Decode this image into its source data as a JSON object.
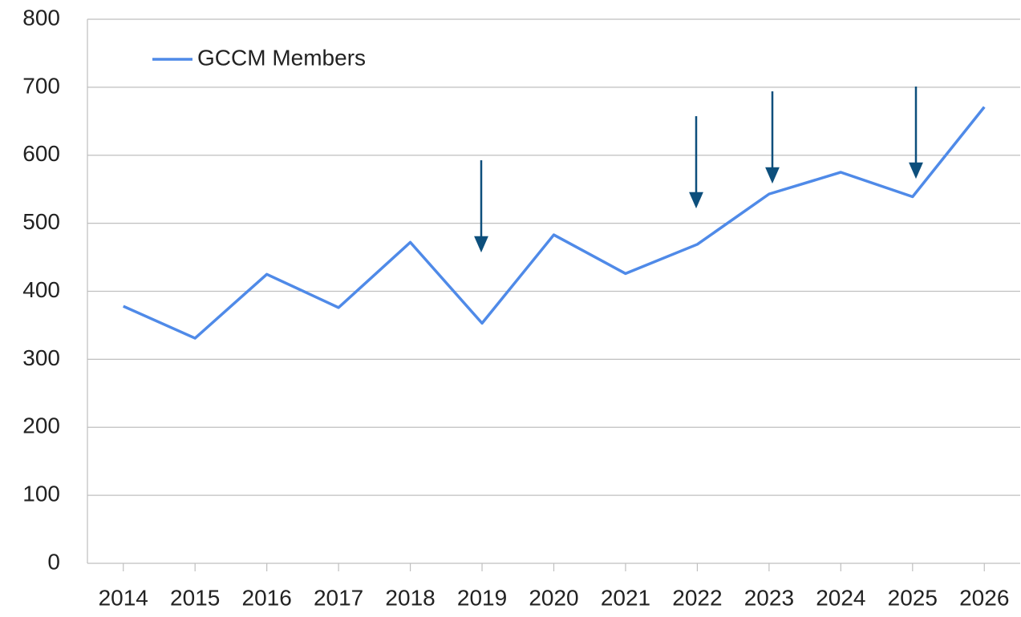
{
  "chart_data": {
    "type": "line",
    "categories": [
      "2014",
      "2015",
      "2016",
      "2017",
      "2018",
      "2019",
      "2020",
      "2021",
      "2022",
      "2023",
      "2024",
      "2025",
      "2026"
    ],
    "series": [
      {
        "name": "GCCM Members",
        "color": "#4f8ae8",
        "values": [
          378,
          331,
          425,
          376,
          472,
          353,
          483,
          426,
          469,
          543,
          575,
          539,
          671
        ]
      }
    ],
    "ylim": [
      0,
      800
    ],
    "yticks": [
      0,
      100,
      200,
      300,
      400,
      500,
      600,
      700,
      800
    ],
    "grid": true,
    "legend": "top-left"
  }
}
